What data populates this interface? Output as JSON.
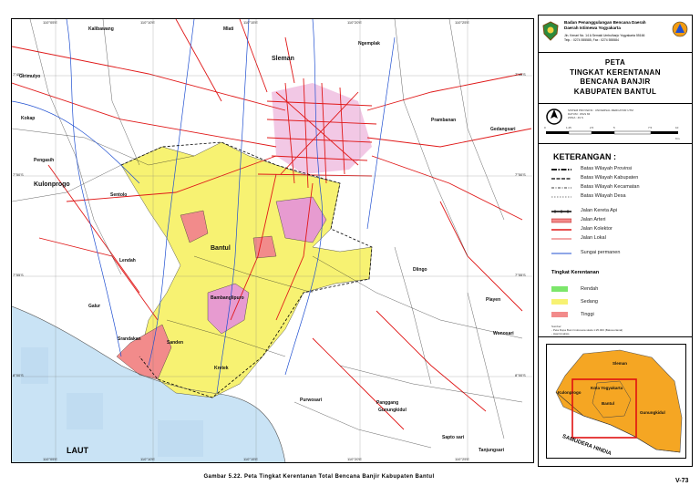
{
  "map": {
    "top_ticks": [
      "110°05'E",
      "110°10'E",
      "110°15'E",
      "110°20'E",
      "110°25'E"
    ],
    "bottom_ticks": [
      "110°05'E",
      "110°10'E",
      "110°15'E",
      "110°20'E",
      "110°25'E"
    ],
    "left_ticks": [
      "7°45'S",
      "7°50'S",
      "7°55'S",
      "8°00'S"
    ],
    "right_ticks": [
      "7°45'S",
      "7°50'S",
      "7°55'S",
      "8°00'S"
    ],
    "places": {
      "kalibawang": "Kalibawang",
      "mlati": "Mlati",
      "sleman": "Sleman",
      "ngemplak": "Ngemplak",
      "girimulyo": "Girimulyo",
      "kokap": "Kokap",
      "pengasih": "Pengasih",
      "kulonprogo": "Kulonprogo",
      "sentolo": "Sentolo",
      "lendah": "Lendah",
      "galur": "Galur",
      "bantul": "Bantul",
      "bambanglipuro": "Bambanglipuro",
      "srandakan": "Srandakan",
      "sanden": "Sanden",
      "kretek": "Kretek",
      "purwosari": "Purwosari",
      "dlingo": "Dlingo",
      "playen": "Playen",
      "prambanan": "Prambanan",
      "gedangsari": "Gedangsari",
      "panggang": "Panggang",
      "gunungkidul": "Gunungkidul",
      "saptosari": "Sapto sari",
      "tanjungsari": "Tanjungsari",
      "wonosari": "Wonosari"
    },
    "sea_label": "LAUT"
  },
  "panel": {
    "agency_line1": "Badan Penanggulangan Bencana Daerah",
    "agency_line2": "Daerah Istimewa Yogyakarta",
    "agency_line3": "Jln. Kenari No. 14 A Semaki Umbulharjo Yogyakarta 55166",
    "agency_line4": "Telp. : 0274 555585, Fax : 0274 555584",
    "title": [
      "PETA",
      "TINGKAT KERENTANAN",
      "BENCANA BANJIR",
      "KABUPATEN BANTUL"
    ],
    "meta_lines": [
      "SISTEM PROYEKSI : UNIVERSAL MERCATOR UTM",
      "DATUM : WGS 84",
      "ZONA : 49 S"
    ],
    "scale_ticks": [
      "0",
      "1.25",
      "2.5",
      "5",
      "7.5",
      "10"
    ],
    "scale_unit": "Km",
    "legend_title": "KETERANGAN :",
    "legend_items": [
      "Batas Wilayah Provinsi",
      "Batas Wilayah Kabupaten",
      "Batas Wilayah Kecamatan",
      "Batas Wilayah Desa",
      "Jalan Kereta Api",
      "Jalan Arteri",
      "Jalan Kolektor",
      "Jalan Lokal",
      "Sungai permanen"
    ],
    "tingkat_title": "Tingkat Kerentanan",
    "tingkat_items": [
      "Rendah",
      "Sedang",
      "Tinggi"
    ],
    "colors": {
      "rendah": "#7ce66b",
      "sedang": "#f7f272",
      "tinggi": "#f28b8b",
      "sea": "#c9e3f5",
      "inset_land": "#f5a623"
    },
    "notes": [
      "Sumber:",
      "- Peta Rupa Bumi Indonesia skala 1:25.000 (Bakosurtanal)",
      "- Hasil Analisis"
    ],
    "inset": {
      "sleman": "Sleman",
      "kota": "Kota Yogyakarta",
      "kulonprogo": "Kulonprogo",
      "bantul": "Bantul",
      "gunungkidul": "Gunungkidul",
      "samudera": "SAMUDERA HINDIA"
    }
  },
  "caption": "Gambar 5.22. Peta Tingkat Kerentanan Total Bencana Banjir Kabupaten Bantul",
  "page_number": "V-73"
}
